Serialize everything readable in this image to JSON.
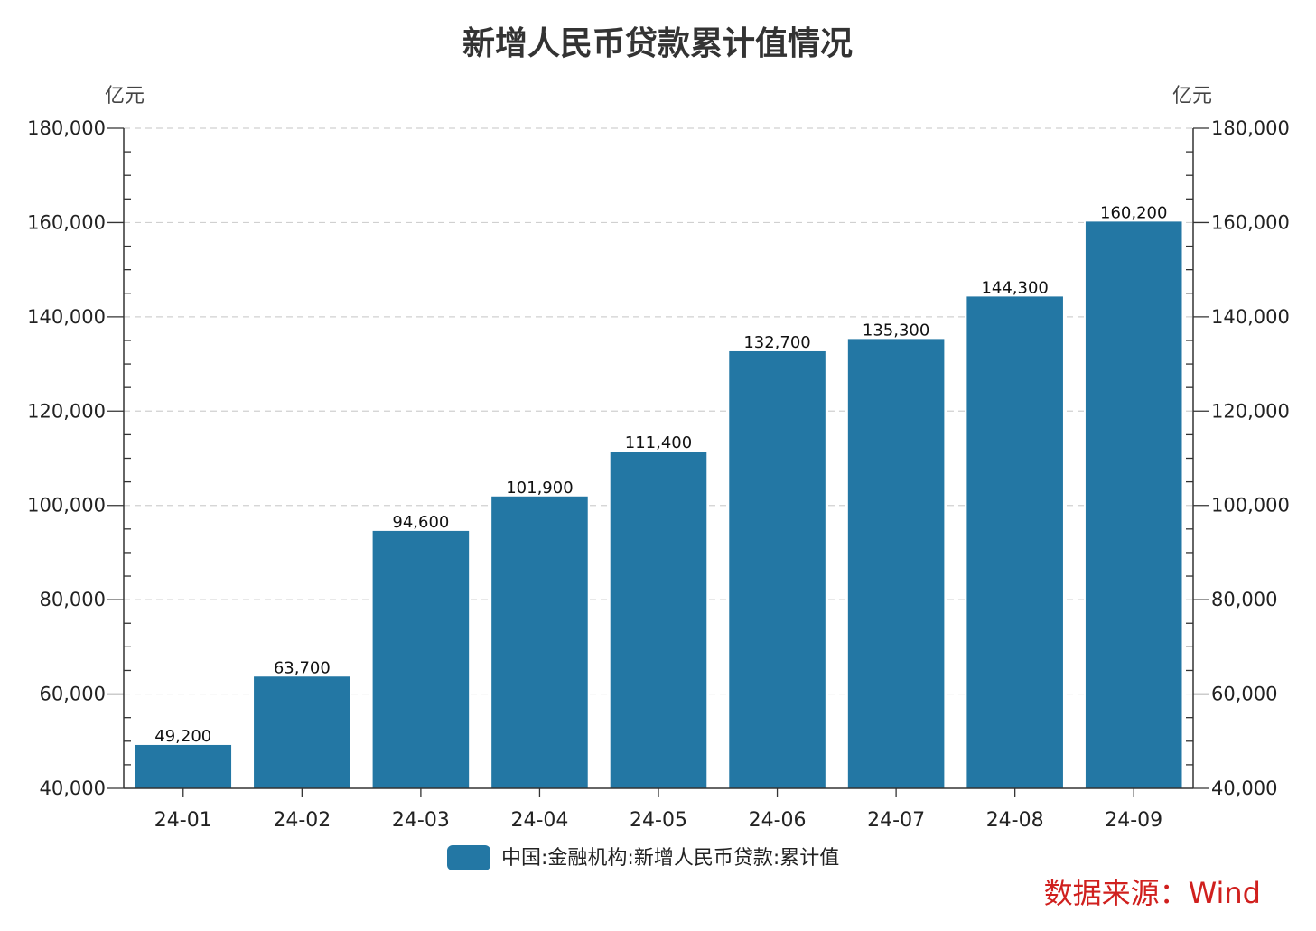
{
  "chart_data": {
    "type": "bar",
    "title": "新增人民币贷款累计值情况",
    "ylabel_left": "亿元",
    "ylabel_right": "亿元",
    "categories": [
      "24-01",
      "24-02",
      "24-03",
      "24-04",
      "24-05",
      "24-06",
      "24-07",
      "24-08",
      "24-09"
    ],
    "series": [
      {
        "name": "中国:金融机构:新增人民币贷款:累计值",
        "values": [
          49200,
          63700,
          94600,
          101900,
          111400,
          132700,
          135300,
          144300,
          160200
        ],
        "labels": [
          "49,200",
          "63,700",
          "94,600",
          "101,900",
          "111,400",
          "132,700",
          "135,300",
          "144,300",
          "160,200"
        ],
        "color": "#2377a4"
      }
    ],
    "ylim": [
      40000,
      180000
    ],
    "yticks": [
      40000,
      60000,
      80000,
      100000,
      120000,
      140000,
      160000,
      180000
    ],
    "ytick_labels": [
      "40,000",
      "60,000",
      "80,000",
      "100,000",
      "120,000",
      "140,000",
      "160,000",
      "180,000"
    ],
    "grid": "horizontal-dashed",
    "legend_position": "bottom-center",
    "source": "数据来源：Wind"
  }
}
